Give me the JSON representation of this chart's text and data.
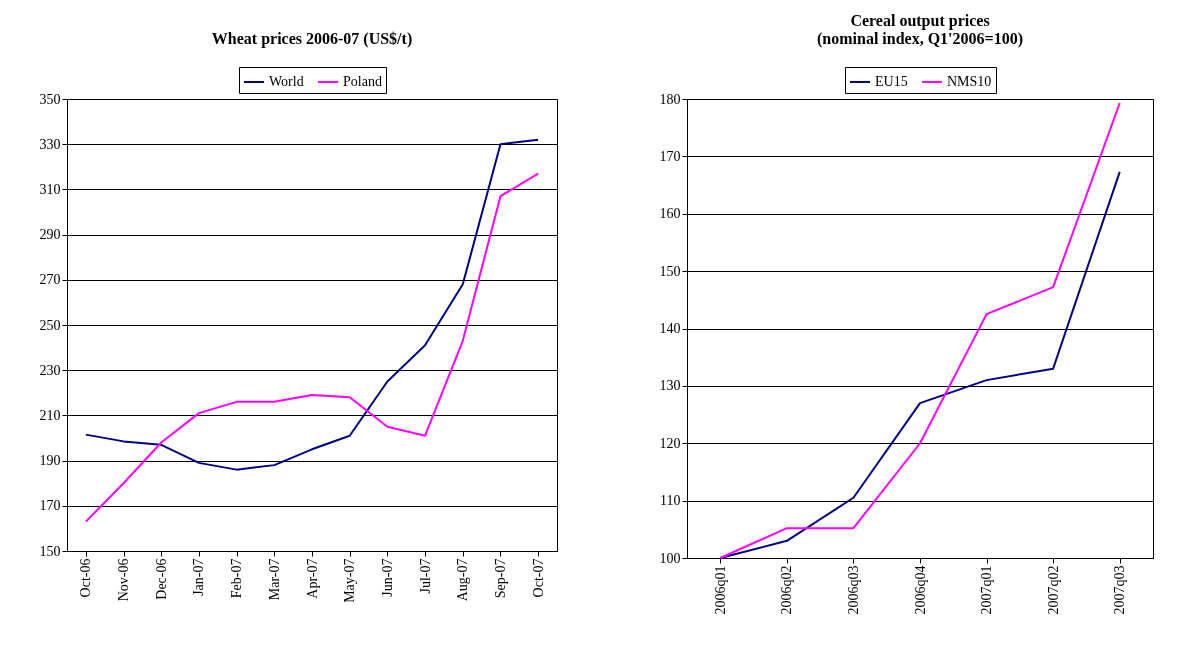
{
  "chart_data": [
    {
      "type": "line",
      "title": "Wheat prices 2006-07 (US$/t)",
      "categories": [
        "Oct-06",
        "Nov-06",
        "Dec-06",
        "Jan-07",
        "Feb-07",
        "Mar-07",
        "Apr-07",
        "May-07",
        "Jun-07",
        "Jul-07",
        "Aug-07",
        "Sep-07",
        "Oct-07"
      ],
      "series": [
        {
          "name": "World",
          "color": "#000080",
          "values": [
            201.5,
            198.5,
            197,
            189,
            186,
            188,
            195,
            201,
            225,
            241,
            268,
            330,
            332
          ]
        },
        {
          "name": "Poland",
          "color": "#ff00ff",
          "values": [
            163,
            180,
            198,
            211,
            216,
            216,
            219,
            218,
            205,
            201,
            243,
            307,
            317
          ]
        }
      ],
      "ylim": [
        150,
        350
      ],
      "yticks": [
        150,
        170,
        190,
        210,
        230,
        250,
        270,
        290,
        310,
        330,
        350
      ],
      "grid": "y",
      "legend": "top"
    },
    {
      "type": "line",
      "title": "Cereal output prices\n(nominal index, Q1'2006=100)",
      "categories": [
        "2006q01",
        "2006q02",
        "2006q03",
        "2006q04",
        "2007q01",
        "2007q02",
        "2007q03"
      ],
      "series": [
        {
          "name": "EU15",
          "color": "#000080",
          "values": [
            100,
            103,
            110.5,
            127,
            131,
            133,
            167.3
          ]
        },
        {
          "name": "NMS10",
          "color": "#ff00ff",
          "values": [
            100,
            105.2,
            105.2,
            120,
            142.5,
            147.2,
            179.3
          ]
        }
      ],
      "ylim": [
        100,
        180
      ],
      "yticks": [
        100,
        110,
        120,
        130,
        140,
        150,
        160,
        170,
        180
      ],
      "grid": "y",
      "legend": "top"
    }
  ]
}
